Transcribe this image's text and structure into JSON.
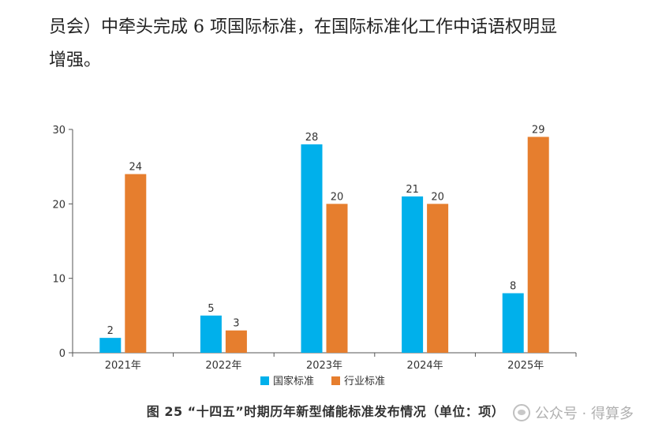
{
  "body_text": {
    "line1": "员会）中牵头完成 6 项国际标准，在国际标准化工作中话语权明显",
    "line2": "增强。"
  },
  "caption": "图 25 “十四五”时期历年新型储能标准发布情况（单位：项）",
  "watermark": "公众号 · 得算多",
  "chart_data": {
    "type": "bar",
    "categories": [
      "2021年",
      "2022年",
      "2023年",
      "2024年",
      "2025年"
    ],
    "series": [
      {
        "name": "国家标准",
        "color": "#00b0eb",
        "values": [
          2,
          5,
          28,
          21,
          8
        ]
      },
      {
        "name": "行业标准",
        "color": "#e67e2e",
        "values": [
          24,
          3,
          20,
          20,
          29
        ]
      }
    ],
    "yticks": [
      0,
      10,
      20,
      30
    ],
    "ylim": [
      0,
      30
    ],
    "legend_position": "bottom",
    "grid": false
  }
}
